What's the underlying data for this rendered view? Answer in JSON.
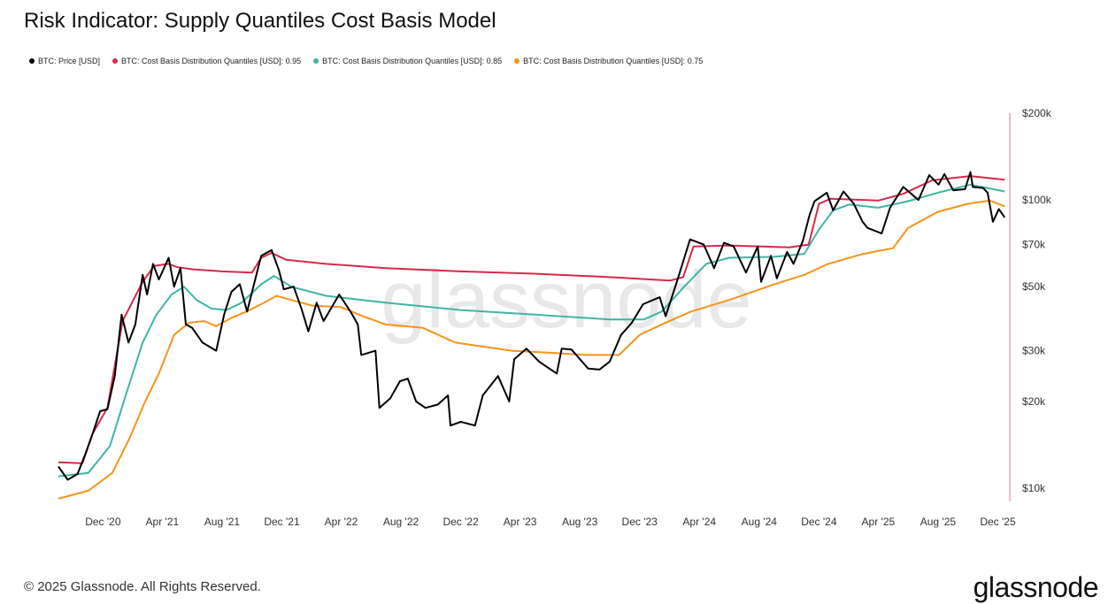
{
  "page": {
    "footer": "© 2025 Glassnode. All Rights Reserved.",
    "brand": "glassnode",
    "watermark": "glassnode"
  },
  "chart_data": {
    "type": "line",
    "title": "Risk Indicator: Supply Quantiles Cost Basis Model",
    "x_ticks": [
      "Dec '20",
      "Apr '21",
      "Aug '21",
      "Dec '21",
      "Apr '22",
      "Aug '22",
      "Dec '22",
      "Apr '23",
      "Aug '23",
      "Dec '23",
      "Apr '24",
      "Aug '24",
      "Dec '24",
      "Apr '25",
      "Aug '25",
      "Dec '25"
    ],
    "y_ticks": [
      {
        "value": 10000,
        "label": "$10k"
      },
      {
        "value": 20000,
        "label": "$20k"
      },
      {
        "value": 30000,
        "label": "$30k"
      },
      {
        "value": 50000,
        "label": "$50k"
      },
      {
        "value": 70000,
        "label": "$70k"
      },
      {
        "value": 100000,
        "label": "$100k"
      },
      {
        "value": 200000,
        "label": "$200k"
      }
    ],
    "y_scale": "log",
    "ylim": [
      9000,
      200000
    ],
    "xlim": [
      "2020-09-01",
      "2025-12-20"
    ],
    "legend_position": "top-left",
    "series": [
      {
        "name": "BTC: Price [USD]",
        "color": "#000000",
        "points": [
          [
            "2020-09-01",
            11900
          ],
          [
            "2020-09-20",
            10700
          ],
          [
            "2020-10-10",
            11200
          ],
          [
            "2020-10-25",
            13000
          ],
          [
            "2020-11-10",
            15500
          ],
          [
            "2020-11-25",
            18500
          ],
          [
            "2020-12-10",
            18800
          ],
          [
            "2020-12-25",
            24500
          ],
          [
            "2021-01-08",
            40000
          ],
          [
            "2021-01-22",
            32000
          ],
          [
            "2021-02-05",
            37000
          ],
          [
            "2021-02-20",
            55000
          ],
          [
            "2021-03-01",
            47000
          ],
          [
            "2021-03-13",
            60000
          ],
          [
            "2021-03-25",
            53000
          ],
          [
            "2021-04-14",
            63000
          ],
          [
            "2021-04-25",
            50000
          ],
          [
            "2021-05-08",
            58000
          ],
          [
            "2021-05-19",
            37000
          ],
          [
            "2021-06-01",
            36000
          ],
          [
            "2021-06-22",
            32000
          ],
          [
            "2021-07-20",
            30000
          ],
          [
            "2021-08-05",
            40000
          ],
          [
            "2021-08-20",
            48000
          ],
          [
            "2021-09-06",
            51000
          ],
          [
            "2021-09-21",
            41000
          ],
          [
            "2021-10-10",
            55000
          ],
          [
            "2021-10-20",
            64000
          ],
          [
            "2021-11-10",
            67000
          ],
          [
            "2021-11-25",
            57000
          ],
          [
            "2021-12-05",
            49000
          ],
          [
            "2021-12-25",
            50000
          ],
          [
            "2022-01-10",
            42000
          ],
          [
            "2022-01-24",
            35000
          ],
          [
            "2022-02-10",
            44000
          ],
          [
            "2022-02-24",
            38000
          ],
          [
            "2022-03-28",
            47000
          ],
          [
            "2022-04-20",
            41000
          ],
          [
            "2022-05-05",
            37000
          ],
          [
            "2022-05-12",
            29000
          ],
          [
            "2022-06-10",
            30000
          ],
          [
            "2022-06-18",
            19000
          ],
          [
            "2022-07-10",
            20500
          ],
          [
            "2022-07-30",
            23500
          ],
          [
            "2022-08-15",
            24000
          ],
          [
            "2022-09-01",
            20000
          ],
          [
            "2022-09-20",
            19000
          ],
          [
            "2022-10-15",
            19500
          ],
          [
            "2022-11-05",
            21000
          ],
          [
            "2022-11-10",
            16500
          ],
          [
            "2022-12-01",
            17000
          ],
          [
            "2022-12-30",
            16500
          ],
          [
            "2023-01-15",
            21000
          ],
          [
            "2023-02-15",
            24500
          ],
          [
            "2023-03-10",
            20000
          ],
          [
            "2023-03-20",
            28000
          ],
          [
            "2023-04-14",
            30500
          ],
          [
            "2023-05-10",
            27500
          ],
          [
            "2023-06-15",
            25000
          ],
          [
            "2023-06-25",
            30500
          ],
          [
            "2023-07-15",
            30300
          ],
          [
            "2023-08-18",
            26000
          ],
          [
            "2023-09-10",
            25800
          ],
          [
            "2023-10-01",
            27500
          ],
          [
            "2023-10-24",
            34000
          ],
          [
            "2023-11-15",
            37500
          ],
          [
            "2023-12-08",
            43500
          ],
          [
            "2024-01-11",
            46000
          ],
          [
            "2024-01-23",
            39500
          ],
          [
            "2024-02-15",
            52000
          ],
          [
            "2024-03-13",
            73000
          ],
          [
            "2024-04-10",
            70000
          ],
          [
            "2024-05-01",
            58000
          ],
          [
            "2024-05-21",
            71000
          ],
          [
            "2024-06-10",
            69000
          ],
          [
            "2024-07-05",
            56000
          ],
          [
            "2024-07-29",
            69000
          ],
          [
            "2024-08-05",
            52000
          ],
          [
            "2024-08-25",
            64000
          ],
          [
            "2024-09-06",
            53500
          ],
          [
            "2024-09-27",
            66000
          ],
          [
            "2024-10-10",
            60000
          ],
          [
            "2024-10-29",
            72000
          ],
          [
            "2024-11-12",
            89000
          ],
          [
            "2024-11-22",
            99000
          ],
          [
            "2024-12-17",
            106000
          ],
          [
            "2024-12-30",
            92000
          ],
          [
            "2025-01-20",
            107000
          ],
          [
            "2025-02-10",
            97000
          ],
          [
            "2025-02-28",
            84000
          ],
          [
            "2025-03-10",
            80000
          ],
          [
            "2025-04-08",
            76500
          ],
          [
            "2025-04-25",
            94000
          ],
          [
            "2025-05-22",
            111000
          ],
          [
            "2025-06-22",
            100000
          ],
          [
            "2025-07-14",
            122000
          ],
          [
            "2025-08-02",
            113000
          ],
          [
            "2025-08-14",
            123000
          ],
          [
            "2025-09-01",
            108000
          ],
          [
            "2025-09-25",
            109000
          ],
          [
            "2025-10-06",
            125000
          ],
          [
            "2025-10-11",
            111000
          ],
          [
            "2025-11-01",
            110000
          ],
          [
            "2025-11-10",
            106000
          ],
          [
            "2025-11-21",
            84000
          ],
          [
            "2025-12-03",
            93000
          ],
          [
            "2025-12-15",
            87000
          ]
        ]
      },
      {
        "name": "BTC: Cost Basis Distribution Quantiles [USD]: 0.95",
        "color": "#d6284b",
        "points": [
          [
            "2020-09-01",
            12300
          ],
          [
            "2020-10-20",
            12200
          ],
          [
            "2020-11-10",
            15500
          ],
          [
            "2020-12-10",
            19000
          ],
          [
            "2021-01-10",
            38000
          ],
          [
            "2021-02-20",
            52000
          ],
          [
            "2021-03-15",
            59000
          ],
          [
            "2021-04-14",
            60000
          ],
          [
            "2021-05-01",
            58500
          ],
          [
            "2021-06-01",
            57500
          ],
          [
            "2021-08-01",
            56500
          ],
          [
            "2021-10-01",
            56000
          ],
          [
            "2021-10-20",
            63000
          ],
          [
            "2021-11-10",
            65500
          ],
          [
            "2021-12-10",
            62000
          ],
          [
            "2022-03-01",
            60000
          ],
          [
            "2022-07-01",
            58000
          ],
          [
            "2022-12-01",
            56500
          ],
          [
            "2023-05-01",
            55500
          ],
          [
            "2023-10-01",
            54000
          ],
          [
            "2024-02-01",
            52500
          ],
          [
            "2024-02-28",
            54000
          ],
          [
            "2024-03-20",
            69000
          ],
          [
            "2024-06-01",
            69500
          ],
          [
            "2024-10-01",
            68500
          ],
          [
            "2024-11-10",
            70000
          ],
          [
            "2024-12-01",
            97000
          ],
          [
            "2024-12-25",
            101000
          ],
          [
            "2025-04-01",
            99500
          ],
          [
            "2025-05-22",
            105000
          ],
          [
            "2025-07-20",
            117000
          ],
          [
            "2025-10-06",
            121000
          ],
          [
            "2025-12-15",
            117500
          ]
        ]
      },
      {
        "name": "BTC: Cost Basis Distribution Quantiles [USD]: 0.85",
        "color": "#3eb5a5",
        "points": [
          [
            "2020-09-01",
            11000
          ],
          [
            "2020-11-01",
            11300
          ],
          [
            "2020-12-15",
            14000
          ],
          [
            "2021-01-20",
            22000
          ],
          [
            "2021-02-20",
            32000
          ],
          [
            "2021-03-20",
            40000
          ],
          [
            "2021-04-20",
            47000
          ],
          [
            "2021-05-15",
            50000
          ],
          [
            "2021-06-10",
            45000
          ],
          [
            "2021-07-10",
            42000
          ],
          [
            "2021-08-10",
            41500
          ],
          [
            "2021-09-10",
            44000
          ],
          [
            "2021-10-20",
            51000
          ],
          [
            "2021-11-15",
            54500
          ],
          [
            "2021-12-20",
            50000
          ],
          [
            "2022-03-01",
            46500
          ],
          [
            "2022-07-01",
            44000
          ],
          [
            "2022-12-01",
            41500
          ],
          [
            "2023-05-01",
            40000
          ],
          [
            "2023-10-01",
            38500
          ],
          [
            "2023-12-10",
            38500
          ],
          [
            "2024-01-15",
            41000
          ],
          [
            "2024-03-01",
            50000
          ],
          [
            "2024-04-15",
            60000
          ],
          [
            "2024-06-01",
            63000
          ],
          [
            "2024-09-01",
            63500
          ],
          [
            "2024-11-01",
            65000
          ],
          [
            "2024-12-01",
            79000
          ],
          [
            "2024-12-30",
            92000
          ],
          [
            "2025-02-01",
            96500
          ],
          [
            "2025-04-01",
            94000
          ],
          [
            "2025-06-01",
            99000
          ],
          [
            "2025-08-01",
            106000
          ],
          [
            "2025-10-06",
            113000
          ],
          [
            "2025-12-15",
            107000
          ]
        ]
      },
      {
        "name": "BTC: Cost Basis Distribution Quantiles [USD]: 0.75",
        "color": "#f7931a",
        "points": [
          [
            "2020-09-01",
            9200
          ],
          [
            "2020-11-01",
            9800
          ],
          [
            "2020-12-20",
            11300
          ],
          [
            "2021-01-25",
            15000
          ],
          [
            "2021-02-25",
            20000
          ],
          [
            "2021-03-25",
            25000
          ],
          [
            "2021-04-25",
            34000
          ],
          [
            "2021-05-25",
            37500
          ],
          [
            "2021-06-25",
            38000
          ],
          [
            "2021-07-20",
            36500
          ],
          [
            "2021-08-20",
            39000
          ],
          [
            "2021-09-20",
            41000
          ],
          [
            "2021-10-20",
            43500
          ],
          [
            "2021-11-20",
            46500
          ],
          [
            "2021-12-20",
            45000
          ],
          [
            "2022-02-01",
            43000
          ],
          [
            "2022-04-01",
            42500
          ],
          [
            "2022-05-15",
            39500
          ],
          [
            "2022-07-01",
            37000
          ],
          [
            "2022-09-15",
            36000
          ],
          [
            "2022-11-20",
            32000
          ],
          [
            "2023-01-15",
            31000
          ],
          [
            "2023-03-15",
            30000
          ],
          [
            "2023-06-01",
            29500
          ],
          [
            "2023-08-15",
            29000
          ],
          [
            "2023-10-20",
            29000
          ],
          [
            "2023-12-01",
            34000
          ],
          [
            "2024-01-15",
            37000
          ],
          [
            "2024-03-15",
            41000
          ],
          [
            "2024-06-01",
            45000
          ],
          [
            "2024-09-01",
            51000
          ],
          [
            "2024-11-01",
            55000
          ],
          [
            "2024-12-20",
            60000
          ],
          [
            "2025-03-01",
            65000
          ],
          [
            "2025-05-01",
            68000
          ],
          [
            "2025-06-01",
            80000
          ],
          [
            "2025-08-01",
            91000
          ],
          [
            "2025-10-01",
            97000
          ],
          [
            "2025-11-15",
            99500
          ],
          [
            "2025-12-15",
            95000
          ]
        ]
      }
    ]
  }
}
